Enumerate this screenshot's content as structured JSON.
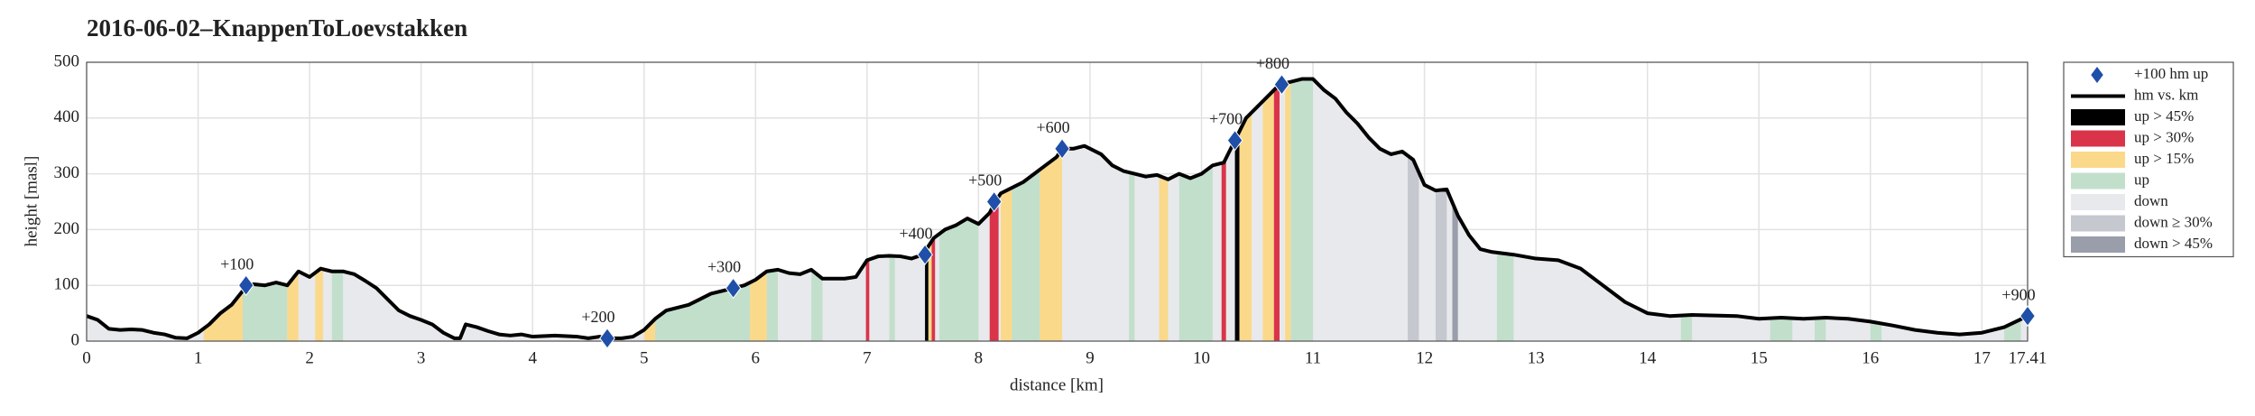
{
  "chart_data": {
    "type": "line",
    "title": "2016-06-02–KnappenToLoevstakken",
    "xlabel": "distance [km]",
    "ylabel": "height [masl]",
    "xlim": [
      0,
      17.41
    ],
    "ylim": [
      0,
      500
    ],
    "xticks": [
      0,
      1,
      2,
      3,
      4,
      5,
      6,
      7,
      8,
      9,
      10,
      11,
      12,
      13,
      14,
      15,
      16,
      17,
      17.41
    ],
    "yticks": [
      0,
      100,
      200,
      300,
      400,
      500
    ],
    "grid": true,
    "legend": "right",
    "series": [
      {
        "name": "+100 hm up",
        "color": "#1f4fa8",
        "x": [
          1.43,
          4.67,
          5.8,
          7.52,
          8.14,
          8.75,
          10.3,
          10.72,
          17.41
        ],
        "values": [
          100,
          5,
          95,
          155,
          250,
          345,
          360,
          460,
          45
        ],
        "labels": [
          "+100",
          "+200",
          "+300",
          "+400",
          "+500",
          "+600",
          "+700",
          "+800",
          "+900"
        ]
      },
      {
        "name": "hm vs. km",
        "color": "#000000",
        "x": [
          0,
          0.1,
          0.2,
          0.3,
          0.4,
          0.5,
          0.6,
          0.7,
          0.8,
          0.9,
          1.0,
          1.1,
          1.2,
          1.3,
          1.4,
          1.45,
          1.5,
          1.6,
          1.7,
          1.8,
          1.9,
          2.0,
          2.1,
          2.2,
          2.3,
          2.4,
          2.5,
          2.6,
          2.7,
          2.8,
          2.9,
          3.0,
          3.1,
          3.2,
          3.3,
          3.35,
          3.4,
          3.5,
          3.6,
          3.7,
          3.8,
          3.9,
          4.0,
          4.2,
          4.4,
          4.5,
          4.6,
          4.67,
          4.8,
          4.9,
          5.0,
          5.1,
          5.2,
          5.3,
          5.4,
          5.5,
          5.6,
          5.7,
          5.8,
          5.9,
          6.0,
          6.1,
          6.2,
          6.3,
          6.4,
          6.5,
          6.6,
          6.7,
          6.8,
          6.9,
          7.0,
          7.1,
          7.2,
          7.3,
          7.4,
          7.5,
          7.6,
          7.7,
          7.8,
          7.9,
          8.0,
          8.1,
          8.15,
          8.2,
          8.3,
          8.4,
          8.5,
          8.6,
          8.7,
          8.75,
          8.85,
          8.95,
          9.1,
          9.2,
          9.3,
          9.4,
          9.5,
          9.6,
          9.7,
          9.8,
          9.9,
          10.0,
          10.1,
          10.2,
          10.3,
          10.4,
          10.5,
          10.6,
          10.7,
          10.8,
          10.9,
          11.0,
          11.1,
          11.2,
          11.3,
          11.4,
          11.5,
          11.6,
          11.7,
          11.8,
          11.9,
          12.0,
          12.1,
          12.2,
          12.3,
          12.4,
          12.5,
          12.6,
          12.8,
          13.0,
          13.2,
          13.4,
          13.6,
          13.8,
          14.0,
          14.2,
          14.4,
          14.6,
          14.8,
          15.0,
          15.2,
          15.4,
          15.6,
          15.8,
          16.0,
          16.2,
          16.4,
          16.6,
          16.8,
          17.0,
          17.2,
          17.41
        ],
        "values": [
          45,
          38,
          22,
          20,
          21,
          20,
          15,
          12,
          6,
          5,
          15,
          30,
          50,
          65,
          90,
          100,
          102,
          100,
          105,
          100,
          125,
          115,
          130,
          125,
          125,
          120,
          108,
          95,
          75,
          55,
          45,
          38,
          30,
          15,
          5,
          5,
          30,
          25,
          18,
          12,
          10,
          12,
          8,
          10,
          8,
          5,
          8,
          5,
          5,
          8,
          20,
          40,
          55,
          60,
          65,
          75,
          85,
          90,
          95,
          100,
          110,
          125,
          128,
          122,
          120,
          128,
          112,
          112,
          112,
          115,
          145,
          152,
          153,
          152,
          148,
          155,
          185,
          200,
          208,
          220,
          210,
          230,
          250,
          265,
          275,
          285,
          300,
          315,
          330,
          345,
          345,
          350,
          335,
          315,
          305,
          300,
          295,
          298,
          290,
          300,
          292,
          300,
          315,
          320,
          360,
          400,
          420,
          440,
          460,
          465,
          470,
          470,
          450,
          435,
          410,
          390,
          365,
          345,
          335,
          340,
          325,
          280,
          270,
          272,
          225,
          190,
          165,
          160,
          155,
          148,
          145,
          130,
          100,
          70,
          50,
          45,
          47,
          46,
          45,
          40,
          42,
          40,
          42,
          40,
          35,
          28,
          20,
          15,
          12,
          15,
          25,
          45
        ]
      }
    ],
    "strips": [
      {
        "name": "up > 45%",
        "color": "#000000",
        "ranges": [
          [
            7.52,
            7.55
          ],
          [
            10.3,
            10.34
          ]
        ]
      },
      {
        "name": "up > 30%",
        "color": "#d9344a",
        "ranges": [
          [
            6.99,
            7.02
          ],
          [
            7.58,
            7.61
          ],
          [
            8.1,
            8.18
          ],
          [
            10.18,
            10.22
          ],
          [
            10.65,
            10.7
          ]
        ]
      },
      {
        "name": "up > 15%",
        "color": "#fad98a",
        "ranges": [
          [
            1.05,
            1.4
          ],
          [
            1.8,
            1.9
          ],
          [
            2.05,
            2.12
          ],
          [
            5.0,
            5.1
          ],
          [
            5.95,
            6.1
          ],
          [
            7.55,
            7.58
          ],
          [
            8.2,
            8.3
          ],
          [
            8.55,
            8.75
          ],
          [
            9.62,
            9.7
          ],
          [
            10.34,
            10.45
          ],
          [
            10.55,
            10.65
          ],
          [
            10.75,
            10.8
          ]
        ]
      },
      {
        "name": "up",
        "color": "#c2dfcc",
        "ranges": [
          [
            1.4,
            1.8
          ],
          [
            2.2,
            2.3
          ],
          [
            5.1,
            5.95
          ],
          [
            6.1,
            6.2
          ],
          [
            6.5,
            6.6
          ],
          [
            7.2,
            7.25
          ],
          [
            7.65,
            8.0
          ],
          [
            8.3,
            8.55
          ],
          [
            9.35,
            9.4
          ],
          [
            9.8,
            10.1
          ],
          [
            10.8,
            11.0
          ],
          [
            12.65,
            12.8
          ],
          [
            14.3,
            14.4
          ],
          [
            15.1,
            15.3
          ],
          [
            15.5,
            15.6
          ],
          [
            16.0,
            16.1
          ],
          [
            17.2,
            17.35
          ]
        ]
      },
      {
        "name": "down",
        "color": "#e8e9ec",
        "ranges": []
      },
      {
        "name": "down ≥ 30%",
        "color": "#c6c8d0",
        "ranges": [
          [
            11.85,
            11.95
          ],
          [
            12.1,
            12.2
          ]
        ]
      },
      {
        "name": "down > 45%",
        "color": "#9a9eab",
        "ranges": [
          [
            12.25,
            12.3
          ]
        ]
      }
    ]
  }
}
